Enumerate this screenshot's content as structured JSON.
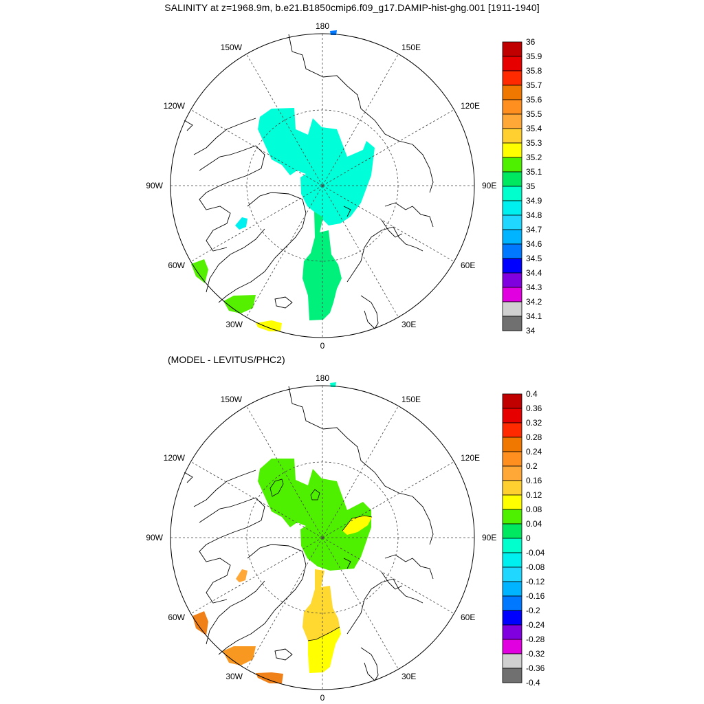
{
  "title": "SALINITY at z=1968.9m, b.e21.B1850cmip6.f09_g17.DAMIP-hist-ghg.001 [1911-1940]",
  "subtitle": "(MODEL - LEVITUS/PHC2)",
  "lon_labels": {
    "top": "180",
    "bottom": "0",
    "left": "90W",
    "right": "90E",
    "ul1": "150W",
    "ul2": "120W",
    "ll1": "60W",
    "ll2": "30W",
    "ur1": "150E",
    "ur2": "120E",
    "lr1": "60E",
    "lr2": "30E"
  },
  "colorbar_top": {
    "labels": [
      "36",
      "35.9",
      "35.8",
      "35.7",
      "35.6",
      "35.5",
      "35.4",
      "35.3",
      "35.2",
      "35.1",
      "35",
      "34.9",
      "34.8",
      "34.7",
      "34.6",
      "34.5",
      "34.4",
      "34.3",
      "34.2",
      "34.1",
      "34"
    ],
    "colors": [
      "#c00000",
      "#e60000",
      "#ff2a00",
      "#f07800",
      "#ff9020",
      "#ffa838",
      "#ffd030",
      "#ffff00",
      "#4ef000",
      "#00e860",
      "#00ffcc",
      "#00f0f0",
      "#20d8ff",
      "#00b4ff",
      "#0078ff",
      "#0000ff",
      "#8000e0",
      "#e000e0",
      "#d0d0d0",
      "#707070"
    ]
  },
  "colorbar_bottom": {
    "labels": [
      "0.4",
      "0.36",
      "0.32",
      "0.28",
      "0.24",
      "0.2",
      "0.16",
      "0.12",
      "0.08",
      "0.04",
      "0",
      "-0.04",
      "-0.08",
      "-0.12",
      "-0.16",
      "-0.2",
      "-0.24",
      "-0.28",
      "-0.32",
      "-0.36",
      "-0.4"
    ],
    "colors": [
      "#c00000",
      "#e60000",
      "#ff2a00",
      "#f07800",
      "#ff9020",
      "#ffa838",
      "#ffd030",
      "#ffff00",
      "#4ef000",
      "#00e860",
      "#00ffcc",
      "#00f0f0",
      "#20d8ff",
      "#00b4ff",
      "#0078ff",
      "#0000ff",
      "#8000e0",
      "#e000e0",
      "#d0d0d0",
      "#707070"
    ]
  },
  "field_colors_top": {
    "main": "#00ffd8",
    "atlantic": "#00f07c",
    "labrador": "#54f000",
    "greenland_south": "#54f000",
    "ne_atlantic": "#ffff00",
    "baffin": "#00f0f0",
    "bering": "#0078ff"
  },
  "field_colors_bottom": {
    "main": "#4ef000",
    "eurasian_patch": "#ffff00",
    "atlantic": "#ffd830",
    "atlantic_south": "#ffff00",
    "labrador": "#f08018",
    "greenland_south": "#f89820",
    "ne_atlantic": "#f08018",
    "baffin": "#ffa838",
    "bering": "#00ffcc"
  }
}
